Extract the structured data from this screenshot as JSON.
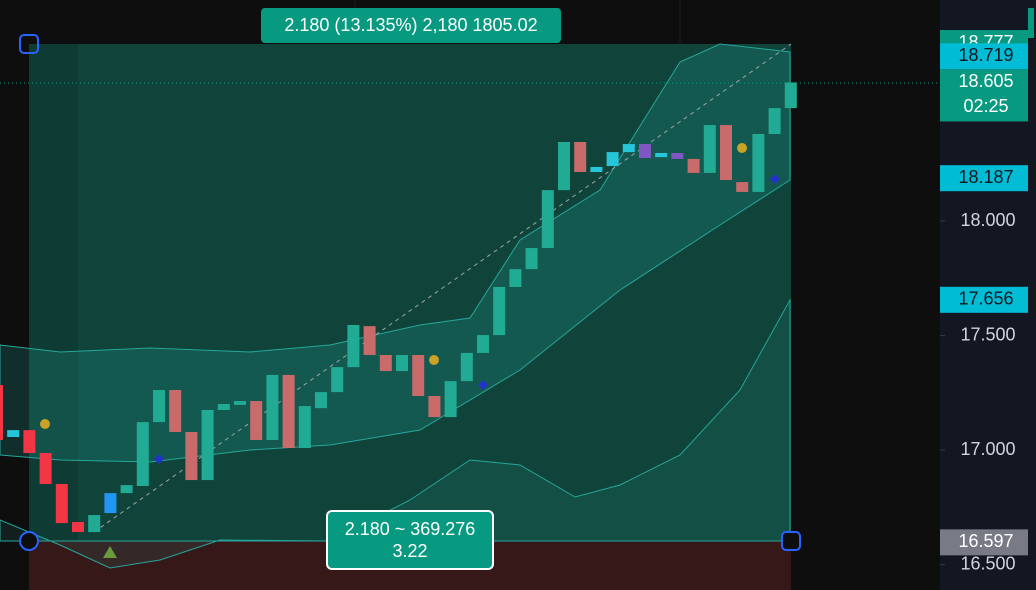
{
  "chart_data": {
    "type": "candlestick",
    "ylim": [
      16.389,
      18.965
    ],
    "yticks": [
      {
        "value": 18,
        "label": "18.000"
      },
      {
        "value": 17.5,
        "label": "17.500"
      },
      {
        "value": 17,
        "label": "17.000"
      },
      {
        "value": 16.5,
        "label": "16.500"
      }
    ],
    "series": [
      {
        "open": [
          17.284,
          17.057,
          17.087,
          16.987,
          16.852,
          16.686,
          16.642,
          16.725,
          16.812,
          16.843,
          17.122,
          17.262,
          17.079,
          16.869,
          17.175,
          17.197,
          17.214,
          17.044,
          17.328,
          17.009,
          17.183,
          17.253,
          17.362,
          17.541,
          17.415,
          17.345,
          17.415,
          17.236,
          17.144,
          17.301,
          17.424,
          17.502,
          17.712,
          17.79,
          17.882,
          18.135,
          18.345,
          18.214,
          18.24,
          18.301,
          18.336,
          18.279,
          18.297,
          18.271,
          18.21,
          18.419,
          18.17,
          18.127,
          18.38,
          18.493
        ],
        "close": [
          17.044,
          17.087,
          16.987,
          16.852,
          16.681,
          16.642,
          16.716,
          16.812,
          16.847,
          17.122,
          17.262,
          17.079,
          16.869,
          17.175,
          17.201,
          17.214,
          17.044,
          17.328,
          17.009,
          17.192,
          17.253,
          17.362,
          17.546,
          17.415,
          17.345,
          17.415,
          17.236,
          17.144,
          17.301,
          17.424,
          17.502,
          17.712,
          17.79,
          17.882,
          18.135,
          18.345,
          18.214,
          18.236,
          18.301,
          18.336,
          18.275,
          18.297,
          18.271,
          18.21,
          18.419,
          18.179,
          18.127,
          18.38,
          18.493,
          18.605
        ],
        "colors": [
          "#f23645",
          "#26c6da",
          "#f23645",
          "#f23645",
          "#f23645",
          "#f23645",
          "#22ab94",
          "#2196f3",
          "#22ab94",
          "#22ab94",
          "#22ab94",
          "#c96b6b",
          "#c96b6b",
          "#22ab94",
          "#22ab94",
          "#22ab94",
          "#c96b6b",
          "#22ab94",
          "#c96b6b",
          "#22ab94",
          "#22ab94",
          "#22ab94",
          "#22ab94",
          "#c96b6b",
          "#c96b6b",
          "#22ab94",
          "#c96b6b",
          "#c96b6b",
          "#22ab94",
          "#22ab94",
          "#22ab94",
          "#22ab94",
          "#22ab94",
          "#22ab94",
          "#22ab94",
          "#22ab94",
          "#c96b6b",
          "#26c6da",
          "#26c6da",
          "#26c6da",
          "#7e57c2",
          "#26c6da",
          "#7e57c2",
          "#c96b6b",
          "#22ab94",
          "#c96b6b",
          "#c96b6b",
          "#22ab94",
          "#22ab94",
          "#22ab94"
        ]
      }
    ],
    "price_labels": [
      {
        "value": 18.777,
        "label": "18.777",
        "color": "#089981",
        "text_color": "#ffffff"
      },
      {
        "value": 18.719,
        "label": "18.719",
        "color": "#00bcd4",
        "text_color": "#131722"
      },
      {
        "value": 18.605,
        "label": "18.605",
        "sublabel": "02:25",
        "color": "#089981",
        "text_color": "#ffffff"
      },
      {
        "value": 18.187,
        "label": "18.187",
        "color": "#00bcd4",
        "text_color": "#131722"
      },
      {
        "value": 17.656,
        "label": "17.656",
        "color": "#00bcd4",
        "text_color": "#131722"
      },
      {
        "value": 16.597,
        "label": "16.597",
        "color": "#787b86",
        "text_color": "#ffffff"
      }
    ],
    "annotations": [
      "2.180 (13.135%) 2,180 1805.02",
      "2.180 ~ 369.276",
      "3.22"
    ]
  }
}
